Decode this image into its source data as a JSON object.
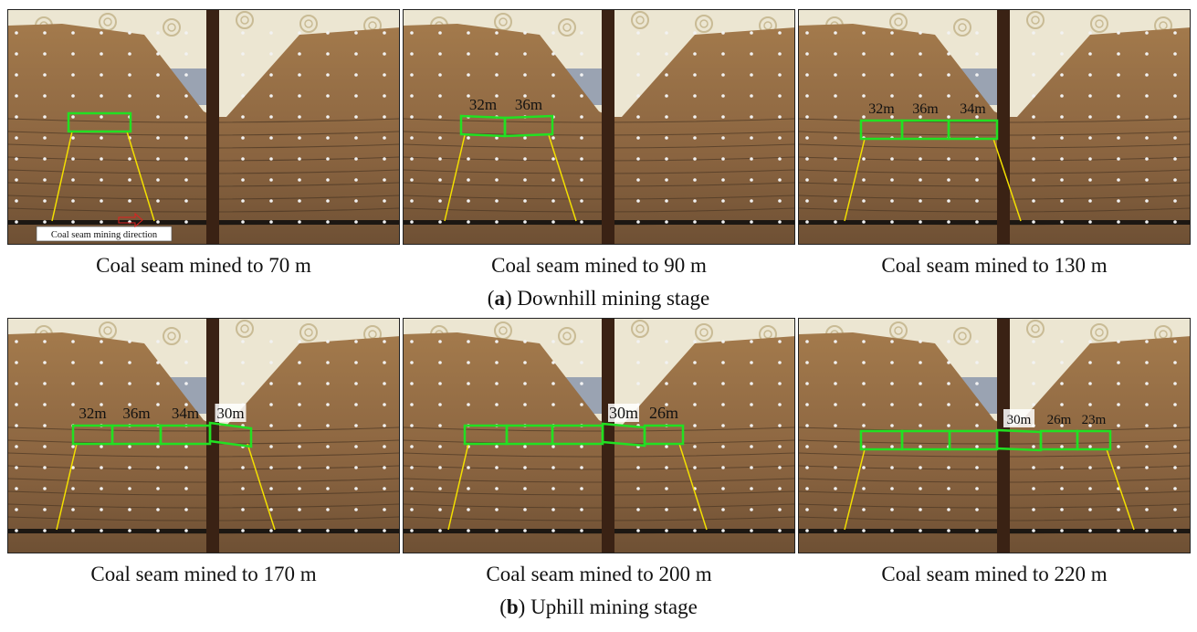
{
  "panels": [
    {
      "caption": "Coal seam mined to 70 m",
      "labels": [],
      "note": "Coal seam mining direction"
    },
    {
      "caption": "Coal seam mined to 90 m",
      "labels": [
        "32m",
        "36m"
      ]
    },
    {
      "caption": "Coal seam mined to 130 m",
      "labels": [
        "32m",
        "36m",
        "34m"
      ]
    },
    {
      "caption": "Coal seam mined to 170 m",
      "labels": [
        "32m",
        "36m",
        "34m",
        "30m"
      ]
    },
    {
      "caption": "Coal seam mined to 200 m",
      "labels": [
        "30m",
        "26m"
      ]
    },
    {
      "caption": "Coal seam mined to 220 m",
      "labels": [
        "30m",
        "26m",
        "23m"
      ]
    }
  ],
  "stages": [
    {
      "open": "(",
      "letter": "a",
      "text": ") Downhill mining stage"
    },
    {
      "open": "(",
      "letter": "b",
      "text": ") Uphill mining stage"
    }
  ]
}
